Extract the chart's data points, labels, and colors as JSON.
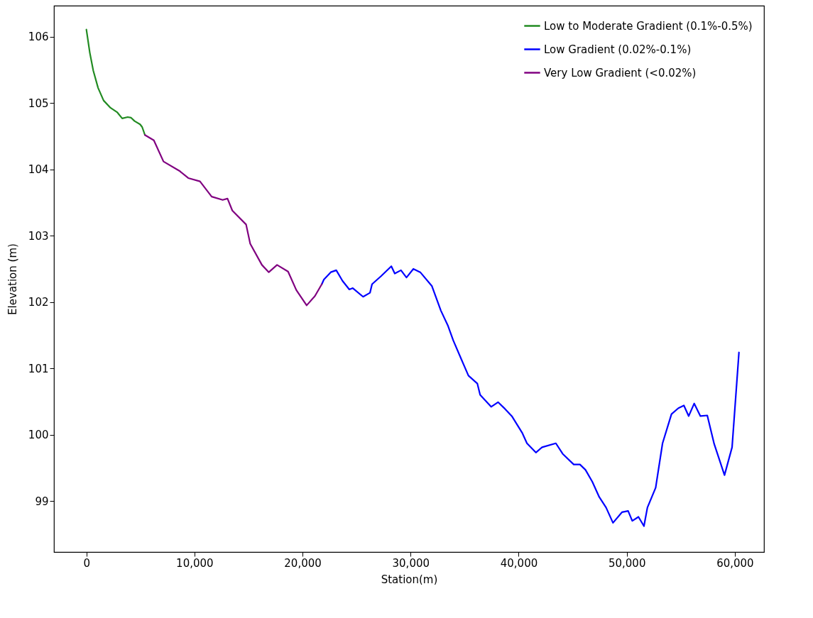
{
  "chart_data": {
    "type": "line",
    "xlabel": "Station(m)",
    "ylabel": "Elevation (m)",
    "xlim": [
      -3000,
      62700
    ],
    "ylim": [
      98.23,
      106.47
    ],
    "xticks": [
      0,
      {
        "value": 10000,
        "label": "10,000"
      },
      {
        "value": 20000,
        "label": "20,000"
      },
      {
        "value": 30000,
        "label": "30,000"
      },
      {
        "value": 40000,
        "label": "40,000"
      },
      {
        "value": 50000,
        "label": "50,000"
      },
      {
        "value": 60000,
        "label": "60,000"
      }
    ],
    "yticks": [
      99,
      100,
      101,
      102,
      103,
      104,
      105,
      106
    ],
    "grid": false,
    "legend": "top right",
    "line_style": "solid",
    "marker": "none",
    "series": [
      {
        "name": "Low to Moderate Gradient (0.1%-0.5%)",
        "color": "#228b22",
        "x": [
          0,
          318,
          637,
          1083,
          1592,
          2229,
          2866,
          3312,
          3822,
          4140,
          4459,
          4968,
          5159,
          5414
        ],
        "values": [
          106.11,
          105.76,
          105.49,
          105.23,
          105.04,
          104.93,
          104.86,
          104.77,
          104.79,
          104.78,
          104.73,
          104.68,
          104.64,
          104.52
        ]
      },
      {
        "name": "Low Gradient (0.02%-0.1%)",
        "color": "#0000ff",
        "x": [
          21783,
          21975,
          22611,
          23121,
          23694,
          24331,
          24650,
          25605,
          26242,
          26433,
          27261,
          28217,
          28535,
          29108,
          29618,
          30255,
          30892,
          31975,
          32803,
          33439,
          33949,
          34713,
          35350,
          36178,
          36433,
          37452,
          38089,
          38726,
          39363,
          40318,
          40764,
          41592,
          42166,
          43439,
          44076,
          45096,
          45669,
          46178,
          46815,
          47452,
          48089,
          48726,
          49554,
          50127,
          50510,
          51083,
          51592,
          51911,
          52675,
          53312,
          54140,
          54777,
          55287,
          55732,
          56242,
          56815,
          57452,
          58089,
          59045,
          59745,
          60382
        ],
        "values": [
          102.27,
          102.34,
          102.45,
          102.48,
          102.32,
          102.19,
          102.21,
          102.08,
          102.14,
          102.27,
          102.39,
          102.54,
          102.43,
          102.48,
          102.37,
          102.5,
          102.45,
          102.24,
          101.87,
          101.65,
          101.42,
          101.13,
          100.89,
          100.77,
          100.6,
          100.42,
          100.49,
          100.39,
          100.28,
          100.03,
          99.87,
          99.73,
          99.81,
          99.87,
          99.71,
          99.55,
          99.55,
          99.47,
          99.29,
          99.06,
          98.9,
          98.67,
          98.83,
          98.85,
          98.7,
          98.76,
          98.62,
          98.9,
          99.2,
          99.87,
          100.31,
          100.4,
          100.44,
          100.28,
          100.47,
          100.28,
          100.29,
          99.86,
          99.39,
          99.81,
          101.24
        ]
      },
      {
        "name": "Very Low Gradient (<0.02%)",
        "color": "#800080",
        "x": [
          5414,
          6242,
          7134,
          8599,
          9427,
          10510,
          11592,
          12611,
          13057,
          13503,
          14777,
          15159,
          16242,
          16879,
          17643,
          18662,
          19427,
          20382,
          21146,
          21783
        ],
        "values": [
          104.52,
          104.44,
          104.12,
          103.98,
          103.87,
          103.82,
          103.59,
          103.54,
          103.56,
          103.38,
          103.17,
          102.88,
          102.56,
          102.45,
          102.56,
          102.46,
          102.18,
          101.95,
          102.09,
          102.27
        ]
      }
    ]
  }
}
